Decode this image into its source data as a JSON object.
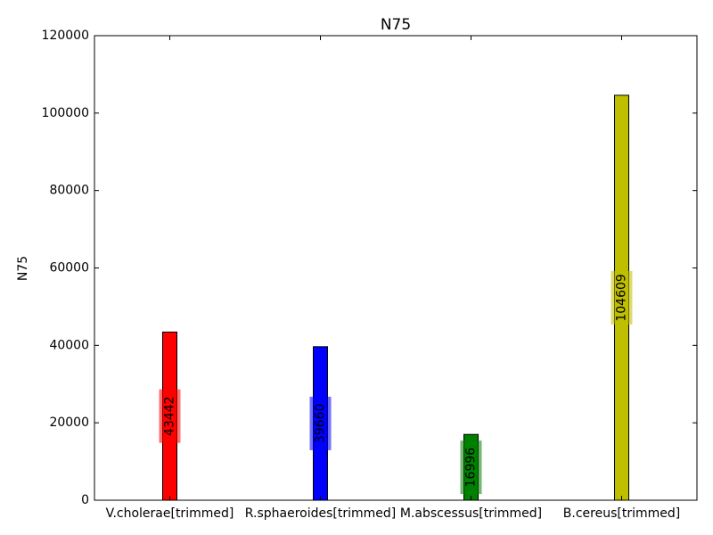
{
  "chart_data": {
    "type": "bar",
    "title": "N75",
    "xlabel": "",
    "ylabel": "N75",
    "ylim": [
      0,
      120000
    ],
    "yticks": [
      0,
      20000,
      40000,
      60000,
      80000,
      100000,
      120000
    ],
    "yticklabels": [
      "0",
      "20000",
      "40000",
      "60000",
      "80000",
      "100000",
      "120000"
    ],
    "categories": [
      "V.cholerae[trimmed]",
      "R.sphaeroides[trimmed]",
      "M.abscessus[trimmed]",
      "B.cereus[trimmed]"
    ],
    "values": [
      43442,
      39660,
      16996,
      104609
    ],
    "data_labels": [
      "43442",
      "39660",
      "16996",
      "104609"
    ],
    "colors": [
      "#ff0000",
      "#0000ff",
      "#008000",
      "#bfbf00"
    ],
    "grid": false,
    "legend": "none"
  }
}
